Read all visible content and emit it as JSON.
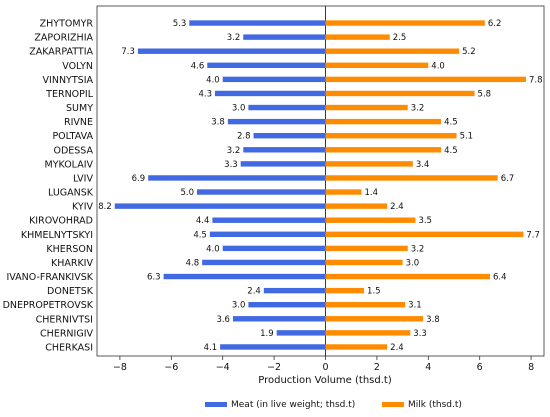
{
  "chart_data": {
    "type": "bar",
    "orientation": "horizontal-diverging",
    "categories": [
      "ZHYTOMYR",
      "ZAPORIZHIA",
      "ZAKARPATTIA",
      "VOLYN",
      "VINNYTSIA",
      "TERNOPIL",
      "SUMY",
      "RIVNE",
      "POLTAVA",
      "ODESSA",
      "MYKOLAIV",
      "LVIV",
      "LUGANSK",
      "KYIV",
      "KIROVOHRAD",
      "KHMELNYTSKYI",
      "KHERSON",
      "KHARKIV",
      "IVANO-FRANKIVSK",
      "DONETSK",
      "DNEPROPETROVSK",
      "CHERNIVTSI",
      "CHERNIGIV",
      "CHERKASI"
    ],
    "series": [
      {
        "name": "Meat (in live weight; thsd.t)",
        "color": "#4169e1",
        "values": [
          5.3,
          3.2,
          7.3,
          4.6,
          4.0,
          4.3,
          3.0,
          3.8,
          2.8,
          3.2,
          3.3,
          6.9,
          5.0,
          8.2,
          4.4,
          4.5,
          4.0,
          4.8,
          6.3,
          2.4,
          3.0,
          3.6,
          1.9,
          4.1
        ],
        "labels": [
          "5.3",
          "3.2",
          "7.3",
          "4.6",
          "4.0",
          "4.3",
          "3.0",
          "3.8",
          "2.8",
          "3.2",
          "3.3",
          "6.9",
          "5.0",
          "8.2",
          "4.4",
          "4.5",
          "4.0",
          "4.8",
          "6.3",
          "2.4",
          "3.0",
          "3.6",
          "1.9",
          "4.1"
        ]
      },
      {
        "name": "Milk (thsd.t)",
        "color": "#ff8c00",
        "values": [
          6.2,
          2.5,
          5.2,
          4.0,
          7.8,
          5.8,
          3.2,
          4.5,
          5.1,
          4.5,
          3.4,
          6.7,
          1.4,
          2.4,
          3.5,
          7.7,
          3.2,
          3.0,
          6.4,
          1.5,
          3.1,
          3.8,
          3.3,
          2.4
        ],
        "labels": [
          "6.2",
          "2.5",
          "5.2",
          "4.0",
          "7.8",
          "5.8",
          "3.2",
          "4.5",
          "5.1",
          "4.5",
          "3.4",
          "6.7",
          "1.4",
          "2.4",
          "3.5",
          "7.7",
          "3.2",
          "3.0",
          "6.4",
          "1.5",
          "3.1",
          "3.8",
          "3.3",
          "2.4"
        ]
      }
    ],
    "xlabel": "Production Volume (thsd.t)",
    "xlim": [
      -8.9,
      8.7
    ],
    "xticks": [
      -8,
      -6,
      -4,
      -2,
      0,
      2,
      4,
      6,
      8
    ],
    "xtick_labels": [
      "−8",
      "−6",
      "−4",
      "−2",
      "0",
      "2",
      "4",
      "6",
      "8"
    ],
    "grid": false,
    "legend": "bottom-center"
  }
}
